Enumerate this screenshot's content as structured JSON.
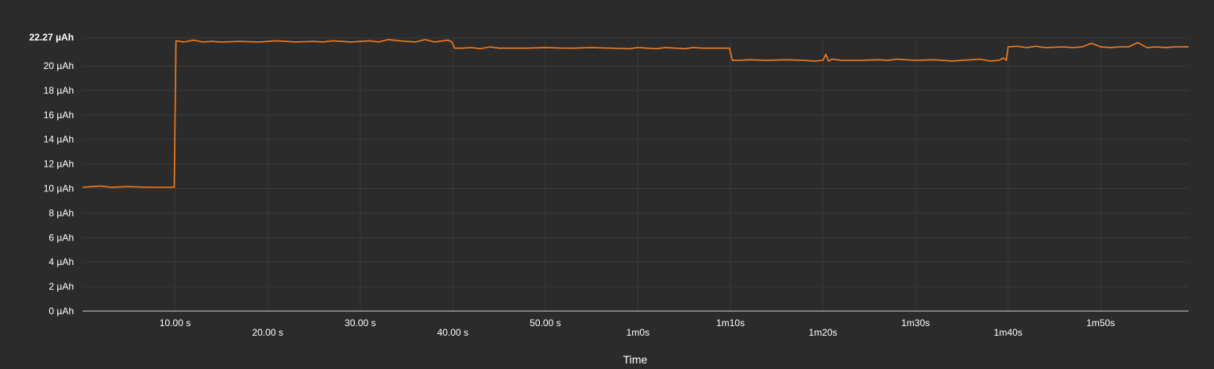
{
  "chart_data": {
    "type": "line",
    "title": "",
    "xlabel": "Time",
    "ylabel": "",
    "y_unit": "µAh",
    "ylim": [
      0,
      22.27
    ],
    "y_max_label": "22.27 µAh",
    "yticks": [
      {
        "value": 0,
        "label": "0 µAh"
      },
      {
        "value": 2,
        "label": "2 µAh"
      },
      {
        "value": 4,
        "label": "4 µAh"
      },
      {
        "value": 6,
        "label": "6 µAh"
      },
      {
        "value": 8,
        "label": "8 µAh"
      },
      {
        "value": 10,
        "label": "10 µAh"
      },
      {
        "value": 12,
        "label": "12 µAh"
      },
      {
        "value": 14,
        "label": "14 µAh"
      },
      {
        "value": 16,
        "label": "16 µAh"
      },
      {
        "value": 18,
        "label": "18 µAh"
      },
      {
        "value": 20,
        "label": "20 µAh"
      }
    ],
    "xlim_seconds": [
      0,
      119.5
    ],
    "xticks": [
      {
        "value": 10,
        "label": "10.00 s",
        "row": 0
      },
      {
        "value": 20,
        "label": "20.00 s",
        "row": 1
      },
      {
        "value": 30,
        "label": "30.00 s",
        "row": 0
      },
      {
        "value": 40,
        "label": "40.00 s",
        "row": 1
      },
      {
        "value": 50,
        "label": "50.00 s",
        "row": 0
      },
      {
        "value": 60,
        "label": "1m0s",
        "row": 1
      },
      {
        "value": 70,
        "label": "1m10s",
        "row": 0
      },
      {
        "value": 80,
        "label": "1m20s",
        "row": 1
      },
      {
        "value": 90,
        "label": "1m30s",
        "row": 0
      },
      {
        "value": 100,
        "label": "1m40s",
        "row": 1
      },
      {
        "value": 110,
        "label": "1m50s",
        "row": 0
      }
    ],
    "grid": true,
    "series": [
      {
        "color": "#f47b20",
        "x": [
          0,
          1,
          2,
          3,
          5,
          7,
          9,
          9.7,
          9.9,
          10.1,
          10.5,
          11,
          12,
          13,
          14,
          15,
          17,
          19,
          21,
          23,
          25,
          26,
          27,
          29,
          30,
          31,
          32,
          33,
          35,
          36,
          37,
          38,
          39,
          39.5,
          39.9,
          40.2,
          41,
          42,
          43,
          44,
          45,
          47,
          48,
          50,
          52,
          53,
          55,
          57,
          59,
          60,
          61,
          62,
          63,
          64,
          65,
          66,
          67,
          68,
          69,
          69.7,
          69.9,
          70.2,
          71,
          72,
          74,
          76,
          78,
          79,
          80,
          80.3,
          80.6,
          81,
          82,
          84,
          86,
          87,
          88,
          90,
          92,
          94,
          95,
          97,
          98,
          99,
          99.5,
          99.8,
          100,
          101,
          102,
          103,
          104,
          106,
          107,
          108,
          109,
          110,
          111,
          112,
          113,
          114,
          115,
          116,
          117,
          118,
          119,
          119.5
        ],
        "values": [
          10.1,
          10.15,
          10.2,
          10.1,
          10.15,
          10.1,
          10.1,
          10.1,
          10.1,
          22.05,
          22.0,
          21.95,
          22.1,
          21.95,
          22.0,
          21.95,
          22.0,
          21.95,
          22.05,
          21.95,
          22.0,
          21.95,
          22.05,
          21.95,
          22.0,
          22.05,
          21.95,
          22.15,
          22.0,
          21.95,
          22.15,
          21.95,
          22.05,
          22.1,
          21.95,
          21.45,
          21.45,
          21.5,
          21.4,
          21.55,
          21.45,
          21.45,
          21.45,
          21.5,
          21.45,
          21.45,
          21.5,
          21.45,
          21.4,
          21.5,
          21.45,
          21.4,
          21.5,
          21.45,
          21.4,
          21.5,
          21.45,
          21.45,
          21.45,
          21.45,
          21.45,
          20.45,
          20.45,
          20.5,
          20.45,
          20.5,
          20.45,
          20.4,
          20.45,
          20.95,
          20.4,
          20.55,
          20.45,
          20.45,
          20.5,
          20.45,
          20.55,
          20.45,
          20.5,
          20.4,
          20.45,
          20.55,
          20.4,
          20.45,
          20.65,
          20.45,
          21.55,
          21.6,
          21.5,
          21.6,
          21.5,
          21.55,
          21.5,
          21.55,
          21.85,
          21.55,
          21.5,
          21.55,
          21.55,
          21.9,
          21.5,
          21.55,
          21.5,
          21.55,
          21.55,
          21.55
        ]
      }
    ]
  }
}
